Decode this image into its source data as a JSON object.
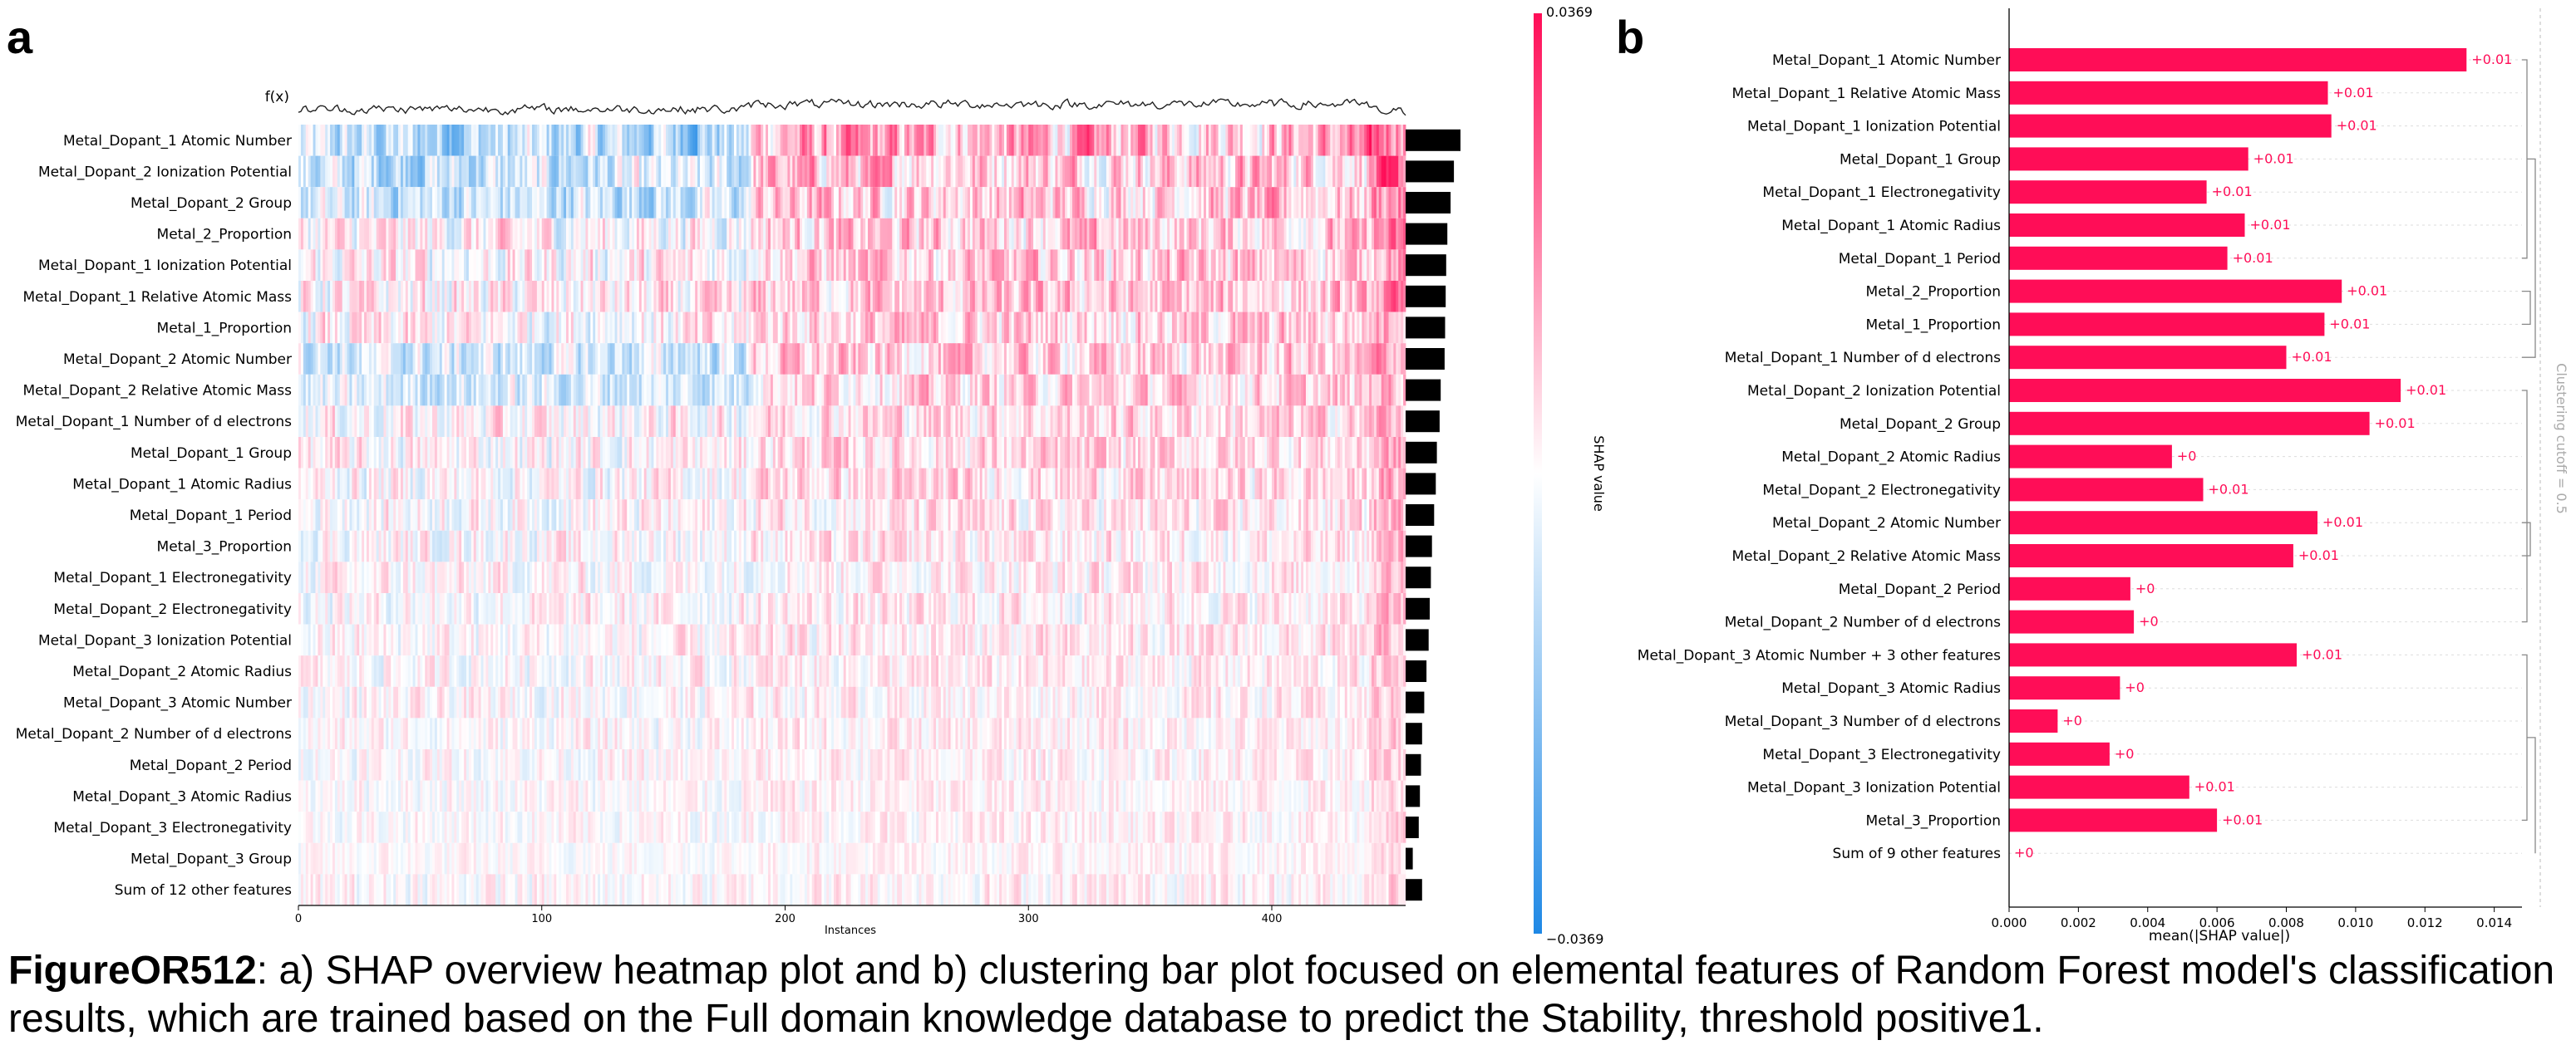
{
  "panels": {
    "a": "a",
    "b": "b"
  },
  "caption": {
    "label": "FigureOR512",
    "text": ": a) SHAP overview heatmap plot and b) clustering bar plot focused on elemental features of Random Forest model's classification results, which are trained based on the Full domain knowledge database to predict the Stability, threshold positive1."
  },
  "colors": {
    "positive": "#ff0d57",
    "negative": "#1e88e5",
    "neutral": "#ffffff",
    "bar_b": "#ff0d57",
    "bar_a": "#000000"
  },
  "chart_data": [
    {
      "type": "heatmap",
      "fx_label": "f(x)",
      "xlabel": "Instances",
      "x_ticks": [
        0,
        100,
        200,
        300,
        400
      ],
      "xlim": [
        0,
        455
      ],
      "colorbar": {
        "label": "SHAP value",
        "max_label": "0.0369",
        "min_label": "−0.0369",
        "range": [
          -0.0369,
          0.0369
        ]
      },
      "features": [
        "Metal_Dopant_1 Atomic Number",
        "Metal_Dopant_2 Ionization Potential",
        "Metal_Dopant_2 Group",
        "Metal_2_Proportion",
        "Metal_Dopant_1 Ionization Potential",
        "Metal_Dopant_1 Relative Atomic Mass",
        "Metal_1_Proportion",
        "Metal_Dopant_2 Atomic Number",
        "Metal_Dopant_2 Relative Atomic Mass",
        "Metal_Dopant_1 Number of d electrons",
        "Metal_Dopant_1 Group",
        "Metal_Dopant_1 Atomic Radius",
        "Metal_Dopant_1 Period",
        "Metal_3_Proportion",
        "Metal_Dopant_1 Electronegativity",
        "Metal_Dopant_2 Electronegativity",
        "Metal_Dopant_3 Ionization Potential",
        "Metal_Dopant_2 Atomic Radius",
        "Metal_Dopant_3 Atomic Number",
        "Metal_Dopant_2 Number of d electrons",
        "Metal_Dopant_2 Period",
        "Metal_Dopant_3 Atomic Radius",
        "Metal_Dopant_3 Electronegativity",
        "Metal_Dopant_3 Group",
        "Sum of 12 other features"
      ],
      "importance_bars": [
        1.0,
        0.88,
        0.82,
        0.76,
        0.74,
        0.73,
        0.72,
        0.71,
        0.64,
        0.62,
        0.57,
        0.55,
        0.52,
        0.48,
        0.46,
        0.44,
        0.42,
        0.38,
        0.34,
        0.3,
        0.28,
        0.26,
        0.24,
        0.13,
        0.3
      ]
    },
    {
      "type": "bar",
      "orientation": "horizontal",
      "xlabel": "mean(|SHAP value|)",
      "xlim": [
        0,
        0.0148
      ],
      "x_ticks": [
        "0.000",
        "0.002",
        "0.004",
        "0.006",
        "0.008",
        "0.010",
        "0.012",
        "0.014"
      ],
      "cluster_label": "Clustering cutoff = 0.5",
      "categories": [
        "Metal_Dopant_1 Atomic Number",
        "Metal_Dopant_1 Relative Atomic Mass",
        "Metal_Dopant_1 Ionization Potential",
        "Metal_Dopant_1 Group",
        "Metal_Dopant_1 Electronegativity",
        "Metal_Dopant_1 Atomic Radius",
        "Metal_Dopant_1 Period",
        "Metal_2_Proportion",
        "Metal_1_Proportion",
        "Metal_Dopant_1 Number of d electrons",
        "Metal_Dopant_2 Ionization Potential",
        "Metal_Dopant_2 Group",
        "Metal_Dopant_2 Atomic Radius",
        "Metal_Dopant_2 Electronegativity",
        "Metal_Dopant_2 Atomic Number",
        "Metal_Dopant_2 Relative Atomic Mass",
        "Metal_Dopant_2 Period",
        "Metal_Dopant_2 Number of d electrons",
        "Metal_Dopant_3 Atomic Number + 3 other features",
        "Metal_Dopant_3 Atomic Radius",
        "Metal_Dopant_3 Number of d electrons",
        "Metal_Dopant_3 Electronegativity",
        "Metal_Dopant_3 Ionization Potential",
        "Metal_3_Proportion",
        "Sum of 9 other features"
      ],
      "values": [
        0.0132,
        0.0092,
        0.0093,
        0.0069,
        0.0057,
        0.0068,
        0.0063,
        0.0096,
        0.0091,
        0.008,
        0.0113,
        0.0104,
        0.0047,
        0.0056,
        0.0089,
        0.0082,
        0.0035,
        0.0036,
        0.0083,
        0.0032,
        0.0014,
        0.0029,
        0.0052,
        0.006,
        0.0
      ],
      "value_labels": [
        "+0.01",
        "+0.01",
        "+0.01",
        "+0.01",
        "+0.01",
        "+0.01",
        "+0.01",
        "+0.01",
        "+0.01",
        "+0.01",
        "+0.01",
        "+0.01",
        "+0",
        "+0.01",
        "+0.01",
        "+0.01",
        "+0",
        "+0",
        "+0.01",
        "+0",
        "+0",
        "+0",
        "+0.01",
        "+0.01",
        "+0"
      ]
    }
  ]
}
